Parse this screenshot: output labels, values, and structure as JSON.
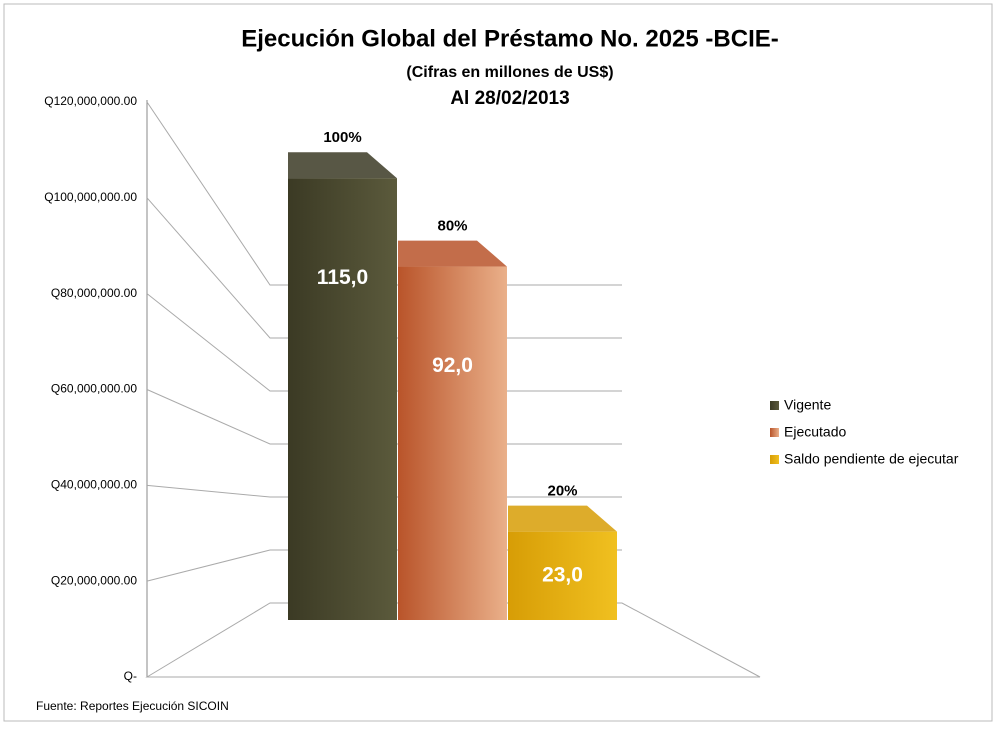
{
  "chart_data": {
    "type": "bar3d",
    "title": "Ejecución Global del Préstamo No. 2025 -BCIE-",
    "subtitle": "(Cifras en millones de US$)",
    "date_label": "Al 28/02/2013",
    "source": "Fuente: Reportes Ejecución SICOIN",
    "ylim": [
      0,
      120000000
    ],
    "yticks": [
      {
        "value": 0,
        "label": "Q-"
      },
      {
        "value": 20000000,
        "label": "Q20,000,000.00"
      },
      {
        "value": 40000000,
        "label": "Q40,000,000.00"
      },
      {
        "value": 60000000,
        "label": "Q60,000,000.00"
      },
      {
        "value": 80000000,
        "label": "Q80,000,000.00"
      },
      {
        "value": 100000000,
        "label": "Q100,000,000.00"
      },
      {
        "value": 120000000,
        "label": "Q120,000,000.00"
      }
    ],
    "grid": true,
    "legend": "right",
    "series": [
      {
        "name": "Vigente",
        "color": "#3b3a24",
        "light": "#5b5a3c",
        "values": [
          115000000
        ],
        "value_labels": [
          "115,0"
        ],
        "share_label": "100%"
      },
      {
        "name": "Ejecutado",
        "color": "#b9542a",
        "light": "#eab08a",
        "values": [
          92000000
        ],
        "value_labels": [
          "92,0"
        ],
        "share_label": "80%"
      },
      {
        "name": "Saldo pendiente de ejecutar",
        "color": "#d79d06",
        "light": "#f0c020",
        "values": [
          23000000
        ],
        "value_labels": [
          "23,0"
        ],
        "share_label": "20%"
      }
    ]
  }
}
